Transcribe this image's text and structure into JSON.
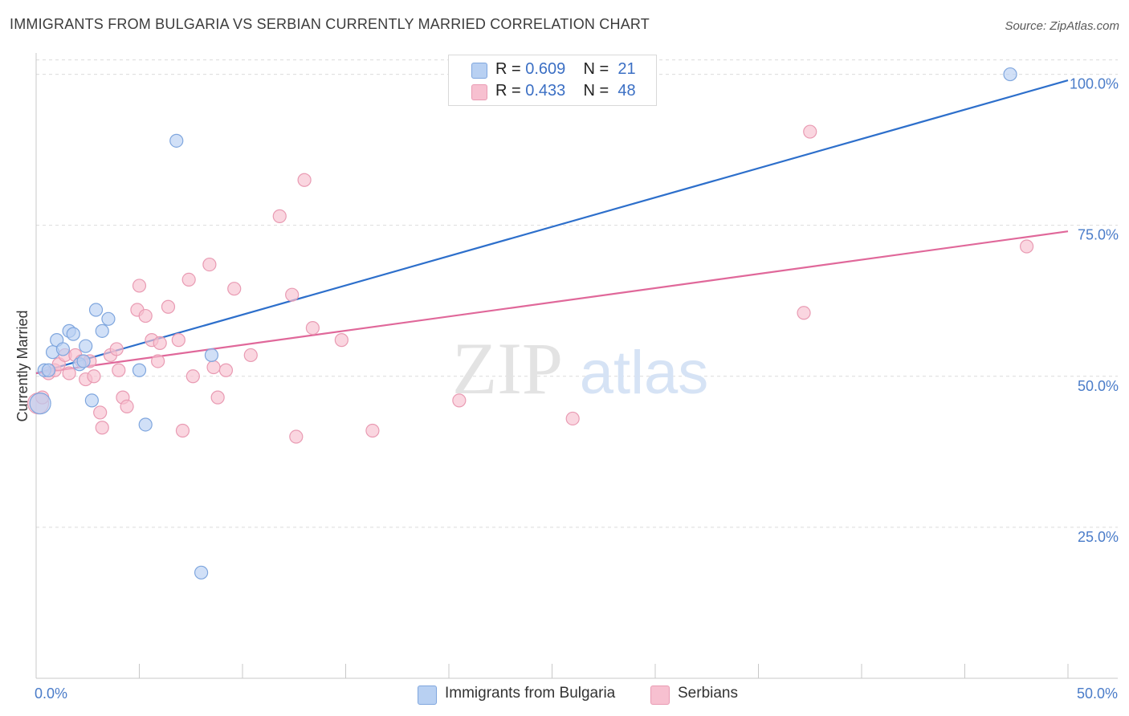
{
  "header": {
    "title": "IMMIGRANTS FROM BULGARIA VS SERBIAN CURRENTLY MARRIED CORRELATION CHART",
    "source": "Source: ZipAtlas.com"
  },
  "legend": {
    "rows": [
      {
        "r_label": "R =",
        "r_value": "0.609",
        "n_label": "N =",
        "n_value": "21"
      },
      {
        "r_label": "R =",
        "r_value": "0.433",
        "n_label": "N =",
        "n_value": "48"
      }
    ]
  },
  "bottom_legend": {
    "items": [
      {
        "label": "Immigrants from Bulgaria"
      },
      {
        "label": "Serbians"
      }
    ]
  },
  "watermark": {
    "zip": "ZIP",
    "atlas": "atlas"
  },
  "colors": {
    "blue_fill": "#b8d0f2",
    "blue_stroke": "#7fa6de",
    "blue_line": "#2d6fcb",
    "pink_fill": "#f7c0d0",
    "pink_stroke": "#e99bb3",
    "pink_line": "#e0689a",
    "tick_text": "#4a7cc9",
    "grid": "#dcdcdc"
  },
  "chart_data": {
    "type": "scatter",
    "xlabel": "",
    "ylabel": "Currently Married",
    "xlim": [
      0,
      50
    ],
    "ylim": [
      0,
      103
    ],
    "x_ticks": [
      {
        "v": 0,
        "label": "0.0%"
      },
      {
        "v": 50,
        "label": "50.0%"
      }
    ],
    "y_ticks": [
      {
        "v": 25,
        "label": "25.0%"
      },
      {
        "v": 50,
        "label": "50.0%"
      },
      {
        "v": 75,
        "label": "75.0%"
      },
      {
        "v": 100,
        "label": "100.0%"
      }
    ],
    "grid": true,
    "series": [
      {
        "name": "Immigrants from Bulgaria",
        "color": "blue",
        "r": 0.609,
        "n": 21,
        "points": [
          [
            0.2,
            45.5
          ],
          [
            0.4,
            51.0
          ],
          [
            0.6,
            51.0
          ],
          [
            0.8,
            54.0
          ],
          [
            1.0,
            56.0
          ],
          [
            1.3,
            54.5
          ],
          [
            1.6,
            57.5
          ],
          [
            1.8,
            57.0
          ],
          [
            2.1,
            52.0
          ],
          [
            2.3,
            52.5
          ],
          [
            2.4,
            55.0
          ],
          [
            2.7,
            46.0
          ],
          [
            2.9,
            61.0
          ],
          [
            3.2,
            57.5
          ],
          [
            3.5,
            59.5
          ],
          [
            5.0,
            51.0
          ],
          [
            5.3,
            42.0
          ],
          [
            6.8,
            89.0
          ],
          [
            8.0,
            17.5
          ],
          [
            8.5,
            53.5
          ],
          [
            47.2,
            100.0
          ]
        ],
        "trend": [
          [
            0,
            50.5
          ],
          [
            50,
            99.0
          ]
        ]
      },
      {
        "name": "Serbians",
        "color": "pink",
        "r": 0.433,
        "n": 48,
        "points": [
          [
            0.1,
            45.5
          ],
          [
            0.3,
            46.5
          ],
          [
            0.6,
            50.5
          ],
          [
            0.9,
            51.0
          ],
          [
            1.1,
            52.0
          ],
          [
            1.4,
            53.5
          ],
          [
            1.6,
            50.5
          ],
          [
            1.9,
            53.5
          ],
          [
            2.2,
            52.5
          ],
          [
            2.4,
            49.5
          ],
          [
            2.6,
            52.5
          ],
          [
            2.8,
            50.0
          ],
          [
            3.1,
            44.0
          ],
          [
            3.2,
            41.5
          ],
          [
            3.6,
            53.5
          ],
          [
            3.9,
            54.5
          ],
          [
            4.0,
            51.0
          ],
          [
            4.2,
            46.5
          ],
          [
            4.4,
            45.0
          ],
          [
            4.9,
            61.0
          ],
          [
            5.0,
            65.0
          ],
          [
            5.3,
            60.0
          ],
          [
            5.6,
            56.0
          ],
          [
            5.9,
            52.5
          ],
          [
            6.0,
            55.5
          ],
          [
            6.4,
            61.5
          ],
          [
            6.9,
            56.0
          ],
          [
            7.1,
            41.0
          ],
          [
            7.4,
            66.0
          ],
          [
            7.6,
            50.0
          ],
          [
            8.4,
            68.5
          ],
          [
            8.6,
            51.5
          ],
          [
            8.8,
            46.5
          ],
          [
            9.2,
            51.0
          ],
          [
            9.6,
            64.5
          ],
          [
            10.4,
            53.5
          ],
          [
            11.8,
            76.5
          ],
          [
            12.4,
            63.5
          ],
          [
            12.6,
            40.0
          ],
          [
            13.0,
            82.5
          ],
          [
            13.4,
            58.0
          ],
          [
            14.8,
            56.0
          ],
          [
            16.3,
            41.0
          ],
          [
            20.5,
            46.0
          ],
          [
            26.0,
            43.0
          ],
          [
            37.2,
            60.5
          ],
          [
            37.5,
            90.5
          ],
          [
            48.0,
            71.5
          ]
        ],
        "trend": [
          [
            0,
            50.5
          ],
          [
            50,
            74.0
          ]
        ]
      }
    ]
  }
}
